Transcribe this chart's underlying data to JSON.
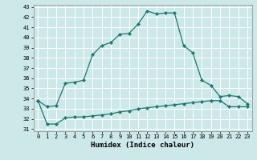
{
  "title": "",
  "xlabel": "Humidex (Indice chaleur)",
  "ylabel": "",
  "bg_color": "#cce8e8",
  "grid_color": "#aed4d4",
  "line_color": "#1a7a6e",
  "xlim": [
    -0.5,
    23.5
  ],
  "ylim": [
    30.8,
    43.2
  ],
  "yticks": [
    31,
    32,
    33,
    34,
    35,
    36,
    37,
    38,
    39,
    40,
    41,
    42,
    43
  ],
  "xticks": [
    0,
    1,
    2,
    3,
    4,
    5,
    6,
    7,
    8,
    9,
    10,
    11,
    12,
    13,
    14,
    15,
    16,
    17,
    18,
    19,
    20,
    21,
    22,
    23
  ],
  "line1_x": [
    0,
    1,
    2,
    3,
    4,
    5,
    6,
    7,
    8,
    9,
    10,
    11,
    12,
    13,
    14,
    15,
    16,
    17,
    18,
    19,
    20,
    21,
    22,
    23
  ],
  "line1_y": [
    33.8,
    33.2,
    33.3,
    35.5,
    35.6,
    35.8,
    38.3,
    39.2,
    39.5,
    40.3,
    40.4,
    41.3,
    42.6,
    42.3,
    42.4,
    42.4,
    39.2,
    38.5,
    35.8,
    35.3,
    34.2,
    34.3,
    34.2,
    33.5
  ],
  "line2_x": [
    0,
    1,
    2,
    3,
    4,
    5,
    6,
    7,
    8,
    9,
    10,
    11,
    12,
    13,
    14,
    15,
    16,
    17,
    18,
    19,
    20,
    21,
    22,
    23
  ],
  "line2_y": [
    33.8,
    31.5,
    31.5,
    32.1,
    32.2,
    32.2,
    32.3,
    32.4,
    32.5,
    32.7,
    32.8,
    33.0,
    33.1,
    33.2,
    33.3,
    33.4,
    33.5,
    33.6,
    33.7,
    33.8,
    33.8,
    33.2,
    33.2,
    33.2
  ]
}
